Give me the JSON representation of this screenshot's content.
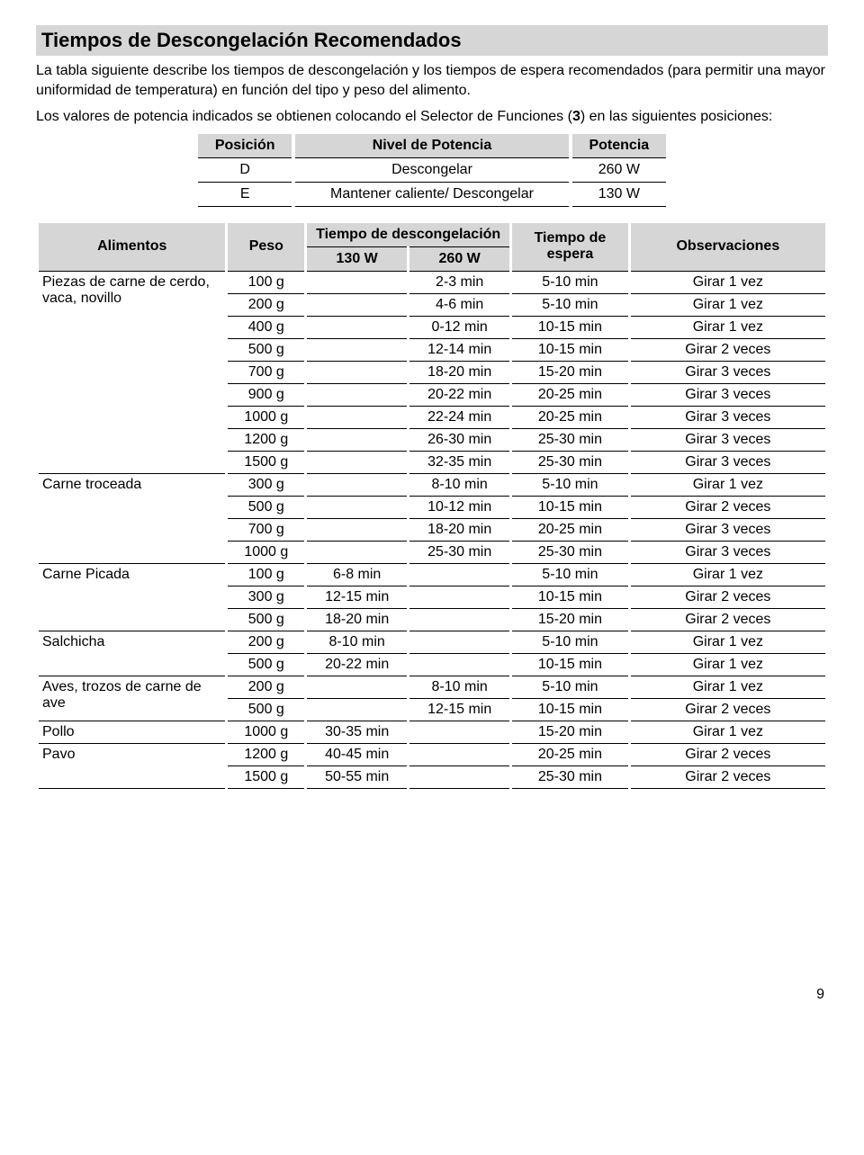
{
  "title": "Tiempos de Descongelación Recomendados",
  "intro1": "La tabla siguiente describe los tiempos de descongelación y los tiempos de espera recomendados (para permitir una mayor uniformidad de temperatura) en función del tipo y peso del alimento.",
  "intro2_a": "Los valores de potencia indicados se obtienen colocando el Selector de Funciones (",
  "intro2_b": "3",
  "intro2_c": ") en las siguientes posiciones:",
  "power": {
    "h_pos": "Posición",
    "h_level": "Nivel de Potencia",
    "h_pow": "Potencia",
    "rows": [
      {
        "pos": "D",
        "level": "Descongelar",
        "pow": "260 W"
      },
      {
        "pos": "E",
        "level": "Mantener caliente/ Descongelar",
        "pow": "130 W"
      }
    ]
  },
  "defrost": {
    "h_food": "Alimentos",
    "h_weight": "Peso",
    "h_thaw": "Tiempo de descongelación",
    "h_130": "130 W",
    "h_260": "260 W",
    "h_wait": "Tiempo de espera",
    "h_obs": "Observaciones",
    "rows": [
      {
        "food": "Piezas de carne de cerdo, vaca, novillo",
        "weight": "100 g",
        "t130": "",
        "t260": "2-3 min",
        "wait": "5-10 min",
        "obs": "Girar 1 vez",
        "rowspan": 9
      },
      {
        "food": "",
        "weight": "200 g",
        "t130": "",
        "t260": "4-6 min",
        "wait": "5-10 min",
        "obs": "Girar 1 vez"
      },
      {
        "food": "",
        "weight": "400 g",
        "t130": "",
        "t260": "0-12 min",
        "wait": "10-15 min",
        "obs": "Girar 1 vez"
      },
      {
        "food": "",
        "weight": "500 g",
        "t130": "",
        "t260": "12-14 min",
        "wait": "10-15 min",
        "obs": "Girar 2 veces"
      },
      {
        "food": "",
        "weight": "700 g",
        "t130": "",
        "t260": "18-20 min",
        "wait": "15-20 min",
        "obs": "Girar 3 veces"
      },
      {
        "food": "",
        "weight": "900 g",
        "t130": "",
        "t260": "20-22 min",
        "wait": "20-25 min",
        "obs": "Girar 3 veces"
      },
      {
        "food": "",
        "weight": "1000 g",
        "t130": "",
        "t260": "22-24 min",
        "wait": "20-25 min",
        "obs": "Girar 3 veces"
      },
      {
        "food": "",
        "weight": "1200 g",
        "t130": "",
        "t260": "26-30 min",
        "wait": "25-30 min",
        "obs": "Girar 3 veces"
      },
      {
        "food": "",
        "weight": "1500 g",
        "t130": "",
        "t260": "32-35 min",
        "wait": "25-30 min",
        "obs": "Girar 3 veces"
      },
      {
        "food": "Carne troceada",
        "weight": "300 g",
        "t130": "",
        "t260": "8-10 min",
        "wait": "5-10 min",
        "obs": "Girar 1 vez",
        "rowspan": 4
      },
      {
        "food": "",
        "weight": "500 g",
        "t130": "",
        "t260": "10-12 min",
        "wait": "10-15 min",
        "obs": "Girar 2 veces"
      },
      {
        "food": "",
        "weight": "700 g",
        "t130": "",
        "t260": "18-20 min",
        "wait": "20-25 min",
        "obs": "Girar 3 veces"
      },
      {
        "food": "",
        "weight": "1000 g",
        "t130": "",
        "t260": "25-30 min",
        "wait": "25-30 min",
        "obs": "Girar 3 veces"
      },
      {
        "food": "Carne Picada",
        "weight": "100 g",
        "t130": "6-8 min",
        "t260": "",
        "wait": "5-10 min",
        "obs": "Girar 1 vez",
        "rowspan": 3
      },
      {
        "food": "",
        "weight": "300 g",
        "t130": "12-15 min",
        "t260": "",
        "wait": "10-15 min",
        "obs": "Girar 2 veces"
      },
      {
        "food": "",
        "weight": "500 g",
        "t130": "18-20 min",
        "t260": "",
        "wait": "15-20 min",
        "obs": "Girar 2 veces"
      },
      {
        "food": "Salchicha",
        "weight": "200 g",
        "t130": "8-10 min",
        "t260": "",
        "wait": "5-10 min",
        "obs": "Girar 1 vez",
        "rowspan": 2
      },
      {
        "food": "",
        "weight": "500 g",
        "t130": "20-22 min",
        "t260": "",
        "wait": "10-15 min",
        "obs": "Girar 1 vez"
      },
      {
        "food": "Aves, trozos de carne de ave",
        "weight": "200 g",
        "t130": "",
        "t260": "8-10 min",
        "wait": "5-10 min",
        "obs": "Girar 1 vez",
        "rowspan": 2
      },
      {
        "food": "",
        "weight": "500 g",
        "t130": "",
        "t260": "12-15 min",
        "wait": "10-15 min",
        "obs": "Girar 2 veces"
      },
      {
        "food": "Pollo",
        "weight": "1000 g",
        "t130": "30-35 min",
        "t260": "",
        "wait": "15-20 min",
        "obs": "Girar 1 vez",
        "rowspan": 1
      },
      {
        "food": "Pavo",
        "weight": "1200 g",
        "t130": "40-45 min",
        "t260": "",
        "wait": "20-25 min",
        "obs": "Girar 2 veces",
        "rowspan": 2
      },
      {
        "food": "",
        "weight": "1500 g",
        "t130": "50-55 min",
        "t260": "",
        "wait": "25-30 min",
        "obs": "Girar 2 veces"
      }
    ]
  },
  "page_num": "9"
}
